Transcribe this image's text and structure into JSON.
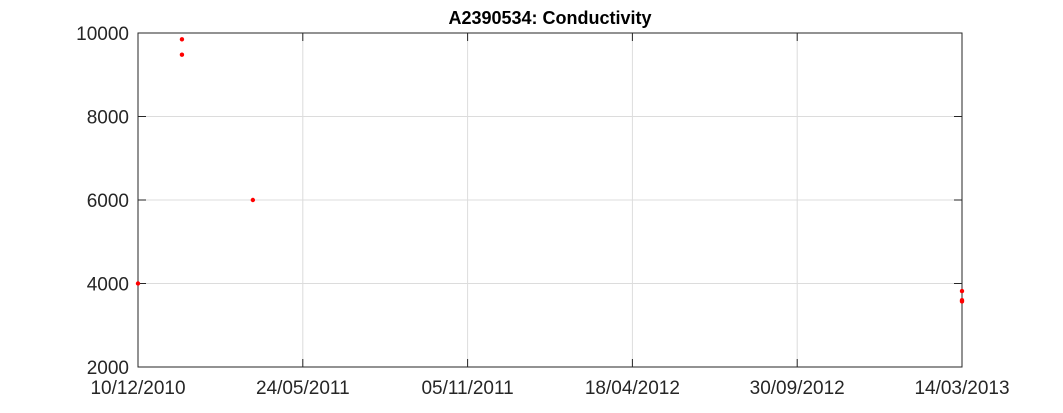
{
  "chart_data": {
    "type": "scatter",
    "title": "A2390534: Conductivity",
    "xlabel": "",
    "ylabel": "",
    "x_axis_type": "date",
    "xlim": [
      "2010-12-10",
      "2013-03-14"
    ],
    "ylim": [
      2000,
      10000
    ],
    "x_ticks": [
      "2010-12-10",
      "2011-05-24",
      "2011-11-05",
      "2012-04-18",
      "2012-09-30",
      "2013-03-14"
    ],
    "x_tick_labels": [
      "10/12/2010",
      "24/05/2011",
      "05/11/2011",
      "18/04/2012",
      "30/09/2012",
      "14/03/2013"
    ],
    "y_ticks": [
      2000,
      4000,
      6000,
      8000,
      10000
    ],
    "y_tick_labels": [
      "2000",
      "4000",
      "6000",
      "8000",
      "10000"
    ],
    "grid": true,
    "legend": "none",
    "series": [
      {
        "color": "#ff0000",
        "marker": "dot",
        "points": [
          {
            "x": "2010-12-10",
            "y": 4000
          },
          {
            "x": "2011-01-23",
            "y": 9850
          },
          {
            "x": "2011-01-23",
            "y": 9480
          },
          {
            "x": "2011-04-04",
            "y": 6000
          },
          {
            "x": "2013-03-14",
            "y": 3820
          },
          {
            "x": "2013-03-14",
            "y": 3600
          },
          {
            "x": "2013-03-14",
            "y": 3570
          }
        ]
      }
    ]
  }
}
